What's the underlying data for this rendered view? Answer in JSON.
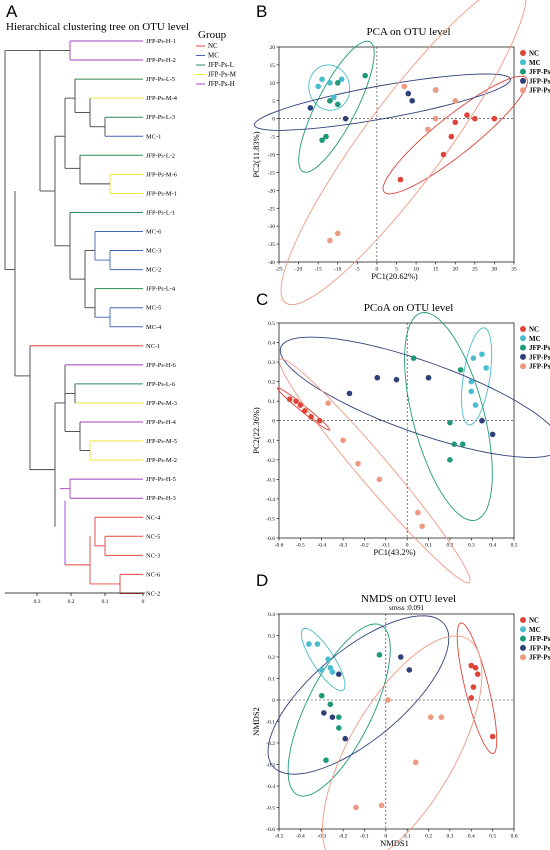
{
  "colors": {
    "NC": "#e04438",
    "MC": "#49bccd",
    "L": "#1f9a78",
    "M": "#30417a",
    "H": "#ee9a82"
  },
  "chart_data": [
    {
      "panel": "A",
      "type": "dendrogram",
      "title": "Hierarchical clustering tree on OTU level",
      "legend_title": "Group",
      "legend": [
        {
          "label": "NC",
          "color": "#e0443c"
        },
        {
          "label": "MC",
          "color": "#4566b0"
        },
        {
          "label": "JFP-Ps-L",
          "color": "#2e8b57"
        },
        {
          "label": "JFP-Ps-M",
          "color": "#e9e53c"
        },
        {
          "label": "JFP-Ps-H",
          "color": "#a040c0"
        }
      ],
      "leaves": [
        "JFP-Ps-H-1",
        "JFP-Ps-H-2",
        "JFP-Ps-L-5",
        "JFP-Ps-M-4",
        "JFP-Ps-L-3",
        "MC-1",
        "JFP-Ps-L-2",
        "JFP-Ps-M-6",
        "JFP-Ps-M-1",
        "JFP-Ps-L-1",
        "MC-6",
        "MC-3",
        "MC-2",
        "JFP-Ps-L-4",
        "MC-5",
        "MC-4",
        "NC-1",
        "JFP-Ps-H-6",
        "JFP-Ps-L-6",
        "JFP-Ps-M-3",
        "JFP-Ps-H-4",
        "JFP-Ps-M-5",
        "JFP-Ps-M-2",
        "JFP-Ps-H-5",
        "JFP-Ps-H-3",
        "NC-4",
        "NC-5",
        "NC-3",
        "NC-6",
        "NC-2"
      ],
      "xlim": [
        0.35,
        0
      ],
      "xticks": [
        "0.3",
        "0.2",
        "0.1",
        "0"
      ]
    },
    {
      "panel": "B",
      "type": "scatter",
      "title": "PCA on OTU level",
      "xlabel": "PC1(20.62%)",
      "ylabel": "PC2(11.83%)",
      "xlim": [
        -25,
        35
      ],
      "ylim": [
        -40,
        20
      ],
      "xticks": [
        -25,
        -20,
        -15,
        -10,
        -5,
        0,
        5,
        10,
        15,
        20,
        25,
        30,
        35
      ],
      "yticks": [
        -40,
        -35,
        -30,
        -25,
        -20,
        -15,
        -10,
        -5,
        0,
        5,
        10,
        15,
        20
      ],
      "series": [
        {
          "name": "NC",
          "points": [
            [
              30,
              0
            ],
            [
              25,
              0
            ],
            [
              23,
              1
            ],
            [
              20,
              -1
            ],
            [
              19,
              -5
            ],
            [
              17,
              -10
            ],
            [
              6,
              -17
            ]
          ]
        },
        {
          "name": "MC",
          "points": [
            [
              -14,
              11
            ],
            [
              -12,
              10
            ],
            [
              -15,
              9
            ],
            [
              -9,
              11
            ],
            [
              -11,
              6
            ],
            [
              -12,
              5
            ]
          ]
        },
        {
          "name": "JFP-Ps-L",
          "points": [
            [
              -3,
              12
            ],
            [
              -10,
              10
            ],
            [
              -12,
              5
            ],
            [
              -10,
              4
            ],
            [
              -14,
              -6
            ],
            [
              -13,
              -5
            ]
          ]
        },
        {
          "name": "JFP-Ps-M",
          "points": [
            [
              15,
              8
            ],
            [
              8,
              7
            ],
            [
              9,
              5
            ],
            [
              -17,
              3
            ],
            [
              -8,
              0
            ]
          ]
        },
        {
          "name": "JFP-Ps-H",
          "points": [
            [
              7,
              9
            ],
            [
              15,
              8
            ],
            [
              20,
              5
            ],
            [
              15,
              0
            ],
            [
              13,
              -3
            ],
            [
              -10,
              -32
            ],
            [
              -12,
              -34
            ]
          ]
        }
      ]
    },
    {
      "panel": "C",
      "type": "scatter",
      "title": "PCoA on OTU level",
      "xlabel": "PC1(43.2%)",
      "ylabel": "PC2(22.36%)",
      "xlim": [
        -0.6,
        0.5
      ],
      "ylim": [
        -0.6,
        0.5
      ],
      "xticks": [
        -0.6,
        -0.5,
        -0.4,
        -0.3,
        -0.2,
        -0.1,
        0,
        0.1,
        0.2,
        0.3,
        0.4,
        0.5
      ],
      "yticks": [
        -0.6,
        -0.5,
        -0.4,
        -0.3,
        -0.2,
        -0.1,
        0,
        0.1,
        0.2,
        0.3,
        0.4,
        0.5
      ],
      "series": [
        {
          "name": "NC",
          "points": [
            [
              -0.55,
              0.11
            ],
            [
              -0.52,
              0.1
            ],
            [
              -0.5,
              0.08
            ],
            [
              -0.48,
              0.05
            ],
            [
              -0.45,
              0.02
            ],
            [
              -0.41,
              0.0
            ]
          ]
        },
        {
          "name": "MC",
          "points": [
            [
              0.35,
              0.34
            ],
            [
              0.31,
              0.32
            ],
            [
              0.37,
              0.27
            ],
            [
              0.3,
              0.2
            ],
            [
              0.3,
              0.15
            ],
            [
              0.32,
              0.08
            ]
          ]
        },
        {
          "name": "JFP-Ps-L",
          "points": [
            [
              0.03,
              0.32
            ],
            [
              0.25,
              0.26
            ],
            [
              0.2,
              -0.01
            ],
            [
              0.26,
              -0.12
            ],
            [
              0.22,
              -0.12
            ],
            [
              0.2,
              -0.2
            ]
          ]
        },
        {
          "name": "JFP-Ps-M",
          "points": [
            [
              -0.14,
              0.22
            ],
            [
              -0.05,
              0.21
            ],
            [
              0.1,
              0.22
            ],
            [
              -0.27,
              0.14
            ],
            [
              0.35,
              0.0
            ],
            [
              0.4,
              -0.07
            ]
          ]
        },
        {
          "name": "JFP-Ps-H",
          "points": [
            [
              -0.37,
              0.09
            ],
            [
              -0.3,
              -0.1
            ],
            [
              -0.13,
              -0.3
            ],
            [
              -0.23,
              -0.22
            ],
            [
              0.05,
              -0.47
            ],
            [
              0.07,
              -0.54
            ]
          ]
        }
      ]
    },
    {
      "panel": "D",
      "type": "scatter",
      "title": "NMDS on OTU level",
      "subtitle": "stress :0.091",
      "xlabel": "NMDS1",
      "ylabel": "NMDS2",
      "xlim": [
        -0.5,
        0.6
      ],
      "ylim": [
        -0.6,
        0.4
      ],
      "xticks": [
        -0.5,
        -0.4,
        -0.3,
        -0.2,
        -0.1,
        0,
        0.1,
        0.2,
        0.3,
        0.4,
        0.5,
        0.6
      ],
      "yticks": [
        -0.6,
        -0.5,
        -0.4,
        -0.3,
        -0.2,
        -0.1,
        0,
        0.1,
        0.2,
        0.3,
        0.4
      ],
      "series": [
        {
          "name": "NC",
          "points": [
            [
              0.4,
              0.16
            ],
            [
              0.42,
              0.15
            ],
            [
              0.43,
              0.12
            ],
            [
              0.41,
              0.06
            ],
            [
              0.4,
              0.01
            ],
            [
              0.5,
              -0.17
            ]
          ]
        },
        {
          "name": "MC",
          "points": [
            [
              -0.36,
              0.26
            ],
            [
              -0.32,
              0.26
            ],
            [
              -0.27,
              0.19
            ],
            [
              -0.26,
              0.15
            ],
            [
              -0.25,
              0.13
            ],
            [
              -0.3,
              0.14
            ]
          ]
        },
        {
          "name": "JFP-Ps-L",
          "points": [
            [
              -0.3,
              0.02
            ],
            [
              -0.26,
              -0.02
            ],
            [
              -0.22,
              -0.08
            ],
            [
              -0.22,
              -0.13
            ],
            [
              -0.28,
              -0.28
            ],
            [
              -0.03,
              0.21
            ]
          ]
        },
        {
          "name": "JFP-Ps-M",
          "points": [
            [
              0.07,
              0.2
            ],
            [
              0.11,
              0.14
            ],
            [
              -0.29,
              -0.06
            ],
            [
              -0.25,
              -0.08
            ],
            [
              -0.19,
              -0.18
            ],
            [
              -0.22,
              0.12
            ]
          ]
        },
        {
          "name": "JFP-Ps-H",
          "points": [
            [
              0.01,
              0.0
            ],
            [
              0.21,
              -0.08
            ],
            [
              0.26,
              -0.08
            ],
            [
              0.14,
              -0.29
            ],
            [
              -0.14,
              -0.5
            ],
            [
              -0.02,
              -0.49
            ]
          ]
        }
      ]
    }
  ]
}
